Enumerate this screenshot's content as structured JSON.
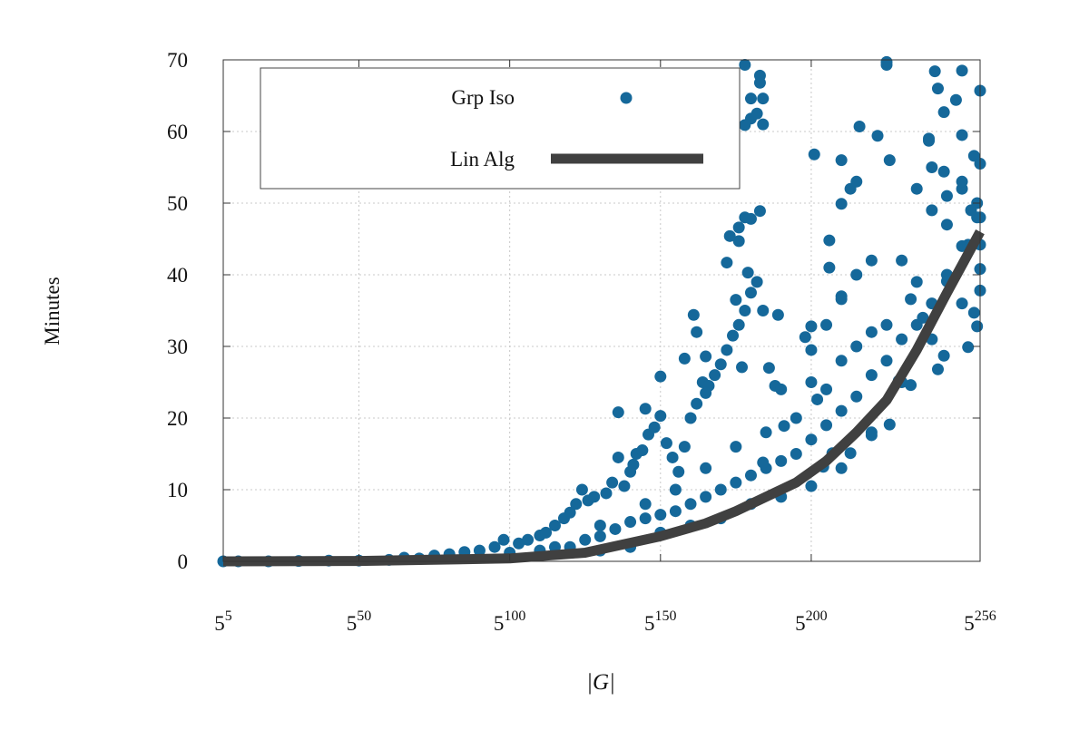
{
  "chart_data": {
    "type": "scatter",
    "title": "",
    "xlabel": "|G|",
    "ylabel": "Minutes",
    "x_scale": "exponent of 5 (linear in exponent)",
    "xlim": [
      5,
      256
    ],
    "ylim": [
      0,
      70
    ],
    "grid": true,
    "legend_position": "top-left",
    "x_ticks": [
      {
        "value": 5,
        "base": "5",
        "exp": "5"
      },
      {
        "value": 50,
        "base": "5",
        "exp": "50"
      },
      {
        "value": 100,
        "base": "5",
        "exp": "100"
      },
      {
        "value": 150,
        "base": "5",
        "exp": "150"
      },
      {
        "value": 200,
        "base": "5",
        "exp": "200"
      },
      {
        "value": 256,
        "base": "5",
        "exp": "256"
      }
    ],
    "y_ticks": [
      0,
      10,
      20,
      30,
      40,
      50,
      60,
      70
    ],
    "colors": {
      "scatter": "#15689a",
      "line": "#404040",
      "grid": "#c8c8c8",
      "axis": "#333333"
    },
    "series": [
      {
        "name": "Grp Iso",
        "kind": "scatter",
        "points": [
          [
            5,
            0
          ],
          [
            10,
            0
          ],
          [
            20,
            0
          ],
          [
            30,
            0.05
          ],
          [
            40,
            0.1
          ],
          [
            50,
            0.1
          ],
          [
            60,
            0.2
          ],
          [
            65,
            0.5
          ],
          [
            70,
            0.4
          ],
          [
            75,
            0.8
          ],
          [
            80,
            1
          ],
          [
            85,
            1.3
          ],
          [
            90,
            1.5
          ],
          [
            95,
            2
          ],
          [
            100,
            1.2
          ],
          [
            98,
            3
          ],
          [
            103,
            2.5
          ],
          [
            106,
            3
          ],
          [
            110,
            3.6
          ],
          [
            112,
            4
          ],
          [
            115,
            5
          ],
          [
            118,
            6
          ],
          [
            120,
            6.8
          ],
          [
            122,
            8
          ],
          [
            124,
            10
          ],
          [
            126,
            8.5
          ],
          [
            128,
            9
          ],
          [
            130,
            5
          ],
          [
            132,
            9.5
          ],
          [
            134,
            11
          ],
          [
            136,
            14.5
          ],
          [
            138,
            10.5
          ],
          [
            140,
            12.5
          ],
          [
            141,
            13.5
          ],
          [
            142,
            15
          ],
          [
            144,
            15.5
          ],
          [
            146,
            17.7
          ],
          [
            148,
            18.7
          ],
          [
            150,
            20.3
          ],
          [
            152,
            16.5
          ],
          [
            154,
            14.5
          ],
          [
            156,
            12.5
          ],
          [
            158,
            16
          ],
          [
            160,
            20
          ],
          [
            162,
            22
          ],
          [
            164,
            25
          ],
          [
            166,
            24.5
          ],
          [
            168,
            26
          ],
          [
            170,
            27.5
          ],
          [
            172,
            29.5
          ],
          [
            174,
            31.5
          ],
          [
            176,
            33
          ],
          [
            178,
            35
          ],
          [
            180,
            37.5
          ],
          [
            182,
            39
          ],
          [
            184,
            35
          ],
          [
            186,
            27
          ],
          [
            188,
            24.5
          ],
          [
            120,
            2
          ],
          [
            125,
            3
          ],
          [
            130,
            3.5
          ],
          [
            135,
            4.5
          ],
          [
            140,
            5.5
          ],
          [
            145,
            6
          ],
          [
            150,
            6.5
          ],
          [
            155,
            7
          ],
          [
            160,
            8
          ],
          [
            165,
            9
          ],
          [
            170,
            10
          ],
          [
            175,
            11
          ],
          [
            180,
            12
          ],
          [
            185,
            13
          ],
          [
            190,
            14
          ],
          [
            195,
            15
          ],
          [
            200,
            17
          ],
          [
            205,
            19
          ],
          [
            210,
            21
          ],
          [
            215,
            23
          ],
          [
            220,
            26
          ],
          [
            225,
            28
          ],
          [
            230,
            31
          ],
          [
            235,
            33
          ],
          [
            240,
            36
          ],
          [
            245,
            40
          ],
          [
            250,
            44
          ],
          [
            255,
            48
          ],
          [
            140,
            2
          ],
          [
            150,
            4
          ],
          [
            160,
            5
          ],
          [
            170,
            6
          ],
          [
            180,
            8
          ],
          [
            190,
            9
          ],
          [
            200,
            10.5
          ],
          [
            210,
            13
          ],
          [
            220,
            18
          ],
          [
            230,
            25
          ],
          [
            240,
            31
          ],
          [
            250,
            36
          ],
          [
            130,
            1.5
          ],
          [
            110,
            1.5
          ],
          [
            115,
            2
          ],
          [
            145,
            8
          ],
          [
            155,
            10
          ],
          [
            165,
            13
          ],
          [
            175,
            16
          ],
          [
            185,
            18
          ],
          [
            195,
            20
          ],
          [
            205,
            24
          ],
          [
            215,
            30
          ],
          [
            225,
            33
          ],
          [
            235,
            39
          ],
          [
            245,
            47
          ],
          [
            255,
            50
          ],
          [
            200,
            25
          ],
          [
            210,
            28
          ],
          [
            220,
            32
          ],
          [
            230,
            42
          ],
          [
            240,
            49
          ],
          [
            250,
            52
          ],
          [
            190,
            24
          ],
          [
            200,
            29.5
          ],
          [
            205,
            33
          ],
          [
            210,
            37
          ],
          [
            215,
            40
          ],
          [
            220,
            42
          ],
          [
            235,
            52
          ],
          [
            240,
            55
          ],
          [
            245,
            51
          ],
          [
            250,
            53
          ],
          [
            253,
            49
          ],
          [
            178,
            69.3
          ],
          [
            180,
            64.6
          ],
          [
            180,
            61.8
          ],
          [
            182,
            62.5
          ],
          [
            183,
            67.8
          ],
          [
            183,
            66.8
          ],
          [
            184,
            64.6
          ],
          [
            184,
            61
          ],
          [
            178,
            60.9
          ],
          [
            201,
            56.8
          ],
          [
            210,
            56
          ],
          [
            216,
            60.7
          ],
          [
            213,
            52
          ],
          [
            215,
            53
          ],
          [
            225,
            69.3
          ],
          [
            225,
            69.7
          ],
          [
            222,
            59.4
          ],
          [
            241,
            68.4
          ],
          [
            250,
            68.5
          ],
          [
            242,
            66
          ],
          [
            248,
            64.4
          ],
          [
            256,
            65.7
          ],
          [
            244,
            62.7
          ],
          [
            254,
            56.6
          ],
          [
            256,
            55.5
          ],
          [
            226,
            56
          ],
          [
            244,
            54.4
          ],
          [
            250,
            59.5
          ],
          [
            239,
            59
          ],
          [
            239,
            58.7
          ],
          [
            180,
            47.8
          ],
          [
            178,
            48
          ],
          [
            176,
            44.7
          ],
          [
            176,
            46.6
          ],
          [
            183,
            48.9
          ],
          [
            210,
            49.9
          ],
          [
            206,
            44.8
          ],
          [
            206,
            41
          ],
          [
            210,
            36.6
          ],
          [
            198,
            31.3
          ],
          [
            200,
            32.8
          ],
          [
            189,
            34.4
          ],
          [
            179,
            40.3
          ],
          [
            161,
            34.4
          ],
          [
            162,
            32
          ],
          [
            165,
            28.6
          ],
          [
            172,
            41.7
          ],
          [
            173,
            45.4
          ],
          [
            165,
            23.5
          ],
          [
            136,
            20.8
          ],
          [
            145,
            21.3
          ],
          [
            150,
            25.8
          ],
          [
            158,
            28.3
          ],
          [
            175,
            36.5
          ],
          [
            177,
            27.1
          ],
          [
            184,
            13.8
          ],
          [
            191,
            18.9
          ],
          [
            202,
            22.6
          ],
          [
            229,
            25.2
          ],
          [
            233,
            36.6
          ],
          [
            237,
            34
          ],
          [
            245,
            39.1
          ],
          [
            252,
            44.2
          ],
          [
            256,
            48
          ],
          [
            256,
            44.2
          ],
          [
            256,
            40.8
          ],
          [
            256,
            37.8
          ],
          [
            255,
            32.8
          ],
          [
            254,
            34.7
          ],
          [
            252,
            29.9
          ],
          [
            244,
            28.7
          ],
          [
            242,
            26.8
          ],
          [
            233,
            24.6
          ],
          [
            226,
            19.1
          ],
          [
            220,
            17.6
          ],
          [
            213,
            15.1
          ],
          [
            207,
            15.1
          ],
          [
            204,
            13.2
          ]
        ]
      },
      {
        "name": "Lin Alg",
        "kind": "line",
        "points": [
          [
            5,
            0
          ],
          [
            50,
            0.05
          ],
          [
            100,
            0.4
          ],
          [
            125,
            1.2
          ],
          [
            150,
            3.5
          ],
          [
            165,
            5.3
          ],
          [
            175,
            7
          ],
          [
            185,
            9
          ],
          [
            195,
            11
          ],
          [
            205,
            14
          ],
          [
            215,
            18
          ],
          [
            225,
            22.5
          ],
          [
            235,
            29.5
          ],
          [
            245,
            37.5
          ],
          [
            256,
            46
          ]
        ]
      }
    ]
  }
}
